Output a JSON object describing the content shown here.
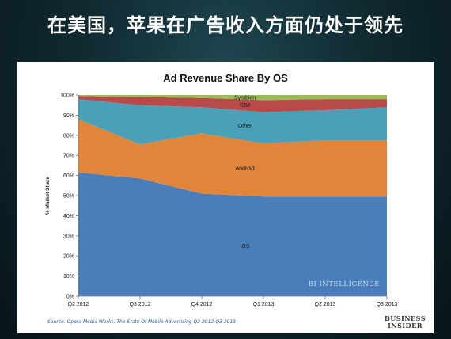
{
  "headline": "在美国，苹果在广告收入方面仍处于领先",
  "chart_data": {
    "type": "area",
    "stacked": true,
    "title": "Ad Revenue Share By OS",
    "ylabel": "% Market Share",
    "xlabel": "",
    "ylim": [
      0,
      100
    ],
    "grid": false,
    "categories": [
      "Q2 2012",
      "Q3 2012",
      "Q4 2012",
      "Q1 2013",
      "Q2 2013",
      "Q3 2013"
    ],
    "y_ticks": [
      "0%",
      "10%",
      "20%",
      "30%",
      "40%",
      "50%",
      "60%",
      "70%",
      "80%",
      "90%",
      "100%"
    ],
    "series": [
      {
        "name": "iOS",
        "color": "#4a7ebb",
        "values": [
          61.5,
          58.5,
          51,
          49.5,
          49.5,
          49.5
        ]
      },
      {
        "name": "Android",
        "color": "#e0863a",
        "values": [
          26.5,
          17,
          30,
          26.5,
          28,
          28
        ]
      },
      {
        "name": "Other",
        "color": "#4aa0b8",
        "values": [
          10,
          19.5,
          13,
          15.5,
          15,
          16.5
        ]
      },
      {
        "name": "RIM",
        "color": "#b84a4a",
        "values": [
          1.5,
          4,
          4.5,
          6,
          5.5,
          4
        ]
      },
      {
        "name": "Symbian",
        "color": "#9bbb59",
        "values": [
          0.5,
          1,
          1.5,
          2.5,
          2,
          2
        ]
      }
    ],
    "watermark": "BI INTELLIGENCE",
    "source": "Source: Opera Media Works, The State Of Mobile Advertising Q2 2012-Q3 2013",
    "brand": [
      "BUSINESS",
      "INSIDER"
    ]
  }
}
